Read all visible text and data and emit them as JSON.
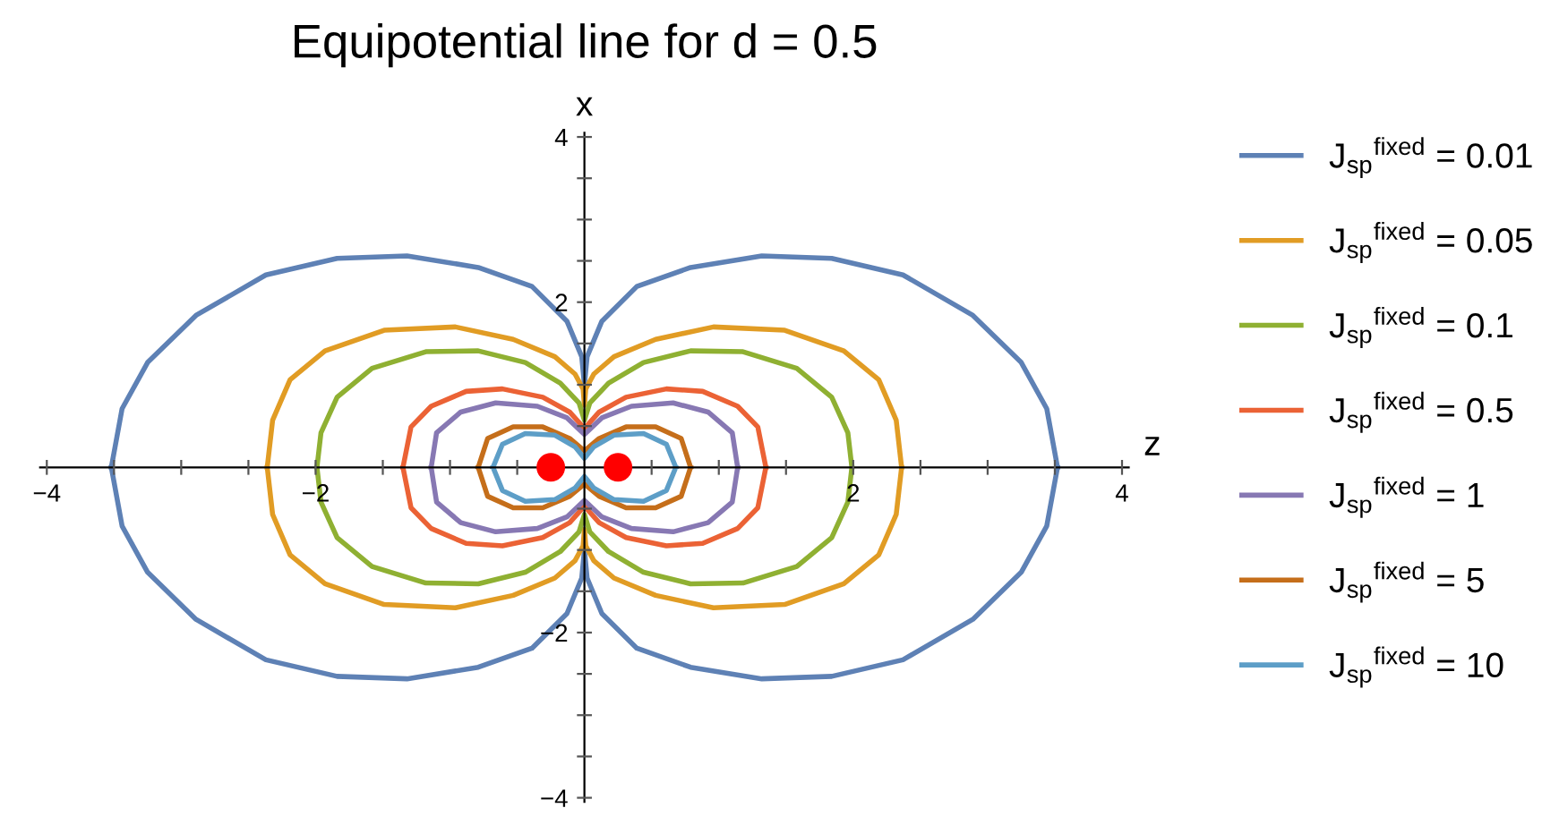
{
  "chart_data": {
    "type": "line",
    "title": "Equipotential line for d = 0.5",
    "xlabel": "z",
    "ylabel": "x",
    "xlim": [
      -4.05,
      4.05
    ],
    "ylim": [
      -4.05,
      4.05
    ],
    "xticks": [
      {
        "value": -4,
        "label": "−4"
      },
      {
        "value": -3.5,
        "label": null
      },
      {
        "value": -3,
        "label": null
      },
      {
        "value": -2.5,
        "label": null
      },
      {
        "value": -2,
        "label": "−2"
      },
      {
        "value": -1.5,
        "label": null
      },
      {
        "value": -1,
        "label": null
      },
      {
        "value": -0.5,
        "label": null
      },
      {
        "value": 0.5,
        "label": null
      },
      {
        "value": 1,
        "label": null
      },
      {
        "value": 1.5,
        "label": null
      },
      2,
      {
        "value": 2.5,
        "label": null
      },
      {
        "value": 3,
        "label": null
      },
      {
        "value": 3.5,
        "label": null
      },
      4
    ],
    "yticks": [
      {
        "value": -4,
        "label": "−4"
      },
      {
        "value": -3.5,
        "label": null
      },
      {
        "value": -3,
        "label": null
      },
      {
        "value": -2.5,
        "label": null
      },
      {
        "value": -2,
        "label": "−2"
      },
      {
        "value": -1.5,
        "label": null
      },
      {
        "value": -1,
        "label": null
      },
      {
        "value": -0.5,
        "label": null
      },
      {
        "value": 0.5,
        "label": null
      },
      {
        "value": 1,
        "label": null
      },
      {
        "value": 1.5,
        "label": null
      },
      2,
      {
        "value": 2.5,
        "label": null
      },
      {
        "value": 3,
        "label": null
      },
      {
        "value": 3.5,
        "label": null
      },
      4
    ],
    "grid": false,
    "legend": "right",
    "line_style": "solid",
    "series": [
      {
        "name": "J$_{sp}$$^{fixed}$ = 0.01",
        "color": "#5e81b5",
        "x": [
          -3.52,
          -3.44,
          -3.25,
          -2.89,
          -2.37,
          -1.84,
          -1.32,
          -0.79,
          -0.39,
          -0.13,
          -0.02,
          0,
          0.02,
          0.13,
          0.39,
          0.79,
          1.32,
          1.84,
          2.37,
          2.89,
          3.25,
          3.44,
          3.52,
          null,
          -3.52,
          -3.44,
          -3.25,
          -2.89,
          -2.37,
          -1.84,
          -1.32,
          -0.79,
          -0.39,
          -0.13,
          -0.02,
          0,
          0.02,
          0.13,
          0.39,
          0.79,
          1.32,
          1.84,
          2.37,
          2.89,
          3.25,
          3.44,
          3.52
        ],
        "values": [
          0,
          0.71,
          1.27,
          1.84,
          2.33,
          2.53,
          2.56,
          2.42,
          2.19,
          1.77,
          1.34,
          1.0,
          1.34,
          1.77,
          2.19,
          2.42,
          2.56,
          2.53,
          2.33,
          1.84,
          1.27,
          0.71,
          0,
          null,
          0,
          -0.71,
          -1.27,
          -1.84,
          -2.33,
          -2.53,
          -2.56,
          -2.42,
          -2.19,
          -1.77,
          -1.34,
          -1.0,
          -1.34,
          -1.77,
          -2.19,
          -2.42,
          -2.56,
          -2.53,
          -2.33,
          -1.84,
          -1.27,
          -0.71,
          0
        ]
      },
      {
        "name": "J$_{sp}$$^{fixed}$ = 0.05",
        "color": "#e19c24",
        "x": [
          -2.36,
          -2.32,
          -2.19,
          -1.93,
          -1.49,
          -0.96,
          -0.53,
          -0.22,
          -0.07,
          -0.01,
          0,
          0.01,
          0.07,
          0.22,
          0.53,
          0.96,
          1.49,
          1.93,
          2.19,
          2.32,
          2.36,
          null,
          -2.36,
          -2.32,
          -2.19,
          -1.93,
          -1.49,
          -0.96,
          -0.53,
          -0.22,
          -0.07,
          -0.01,
          0,
          0.01,
          0.07,
          0.22,
          0.53,
          0.96,
          1.49,
          1.93,
          2.19,
          2.32,
          2.36
        ],
        "values": [
          0,
          0.57,
          1.06,
          1.41,
          1.66,
          1.7,
          1.55,
          1.34,
          1.13,
          0.95,
          0.75,
          0.95,
          1.13,
          1.34,
          1.55,
          1.7,
          1.66,
          1.41,
          1.06,
          0.57,
          0,
          null,
          0,
          -0.57,
          -1.06,
          -1.41,
          -1.66,
          -1.7,
          -1.55,
          -1.34,
          -1.13,
          -0.95,
          -0.75,
          -0.95,
          -1.13,
          -1.34,
          -1.55,
          -1.7,
          -1.66,
          -1.41,
          -1.06,
          -0.57,
          0
        ]
      },
      {
        "name": "J$_{sp}$$^{fixed}$ = 0.1",
        "color": "#8fb032",
        "x": [
          -1.99,
          -1.96,
          -1.84,
          -1.58,
          -1.18,
          -0.79,
          -0.44,
          -0.18,
          -0.04,
          0,
          0.04,
          0.18,
          0.44,
          0.79,
          1.18,
          1.58,
          1.84,
          1.96,
          1.99,
          null,
          -1.99,
          -1.96,
          -1.84,
          -1.58,
          -1.18,
          -0.79,
          -0.44,
          -0.18,
          -0.04,
          0,
          0.04,
          0.18,
          0.44,
          0.79,
          1.18,
          1.58,
          1.84,
          1.96,
          1.99
        ],
        "values": [
          0,
          0.42,
          0.85,
          1.2,
          1.4,
          1.41,
          1.27,
          1.02,
          0.78,
          0.57,
          0.78,
          1.02,
          1.27,
          1.41,
          1.4,
          1.2,
          0.85,
          0.42,
          0,
          null,
          0,
          -0.42,
          -0.85,
          -1.2,
          -1.4,
          -1.41,
          -1.27,
          -1.02,
          -0.78,
          -0.57,
          -0.78,
          -1.02,
          -1.27,
          -1.41,
          -1.4,
          -1.2,
          -0.85,
          -0.42,
          0
        ]
      },
      {
        "name": "J$_{sp}$$^{fixed}$ = 0.5",
        "color": "#eb6235",
        "x": [
          -1.35,
          -1.29,
          -1.14,
          -0.88,
          -0.61,
          -0.31,
          -0.11,
          0,
          0.11,
          0.31,
          0.61,
          0.88,
          1.14,
          1.29,
          1.35,
          null,
          -1.35,
          -1.29,
          -1.14,
          -0.88,
          -0.61,
          -0.31,
          -0.11,
          0,
          0.11,
          0.31,
          0.61,
          0.88,
          1.14,
          1.29,
          1.35
        ],
        "values": [
          0,
          0.49,
          0.74,
          0.92,
          0.95,
          0.85,
          0.67,
          0.47,
          0.67,
          0.85,
          0.95,
          0.92,
          0.74,
          0.49,
          0,
          null,
          0,
          -0.49,
          -0.74,
          -0.92,
          -0.95,
          -0.85,
          -0.67,
          -0.47,
          -0.67,
          -0.85,
          -0.95,
          -0.92,
          -0.74,
          -0.49,
          0
        ]
      },
      {
        "name": "J$_{sp}$$^{fixed}$ = 1",
        "color": "#8778b3",
        "x": [
          -1.14,
          -1.1,
          -0.92,
          -0.66,
          -0.35,
          -0.13,
          0,
          0.13,
          0.35,
          0.66,
          0.92,
          1.1,
          1.14,
          null,
          -1.14,
          -1.1,
          -0.92,
          -0.66,
          -0.35,
          -0.13,
          0,
          0.13,
          0.35,
          0.66,
          0.92,
          1.1,
          1.14
        ],
        "values": [
          0,
          0.42,
          0.67,
          0.78,
          0.74,
          0.6,
          0.4,
          0.6,
          0.74,
          0.78,
          0.67,
          0.42,
          0,
          null,
          0,
          -0.42,
          -0.67,
          -0.78,
          -0.74,
          -0.6,
          -0.4,
          -0.6,
          -0.74,
          -0.78,
          -0.67,
          -0.42,
          0
        ]
      },
      {
        "name": "J$_{sp}$$^{fixed}$ = 5",
        "color": "#c56e1a",
        "x": [
          -0.79,
          -0.72,
          -0.53,
          -0.31,
          -0.11,
          0,
          0.11,
          0.31,
          0.53,
          0.72,
          0.79,
          null,
          -0.79,
          -0.72,
          -0.53,
          -0.31,
          -0.11,
          0,
          0.11,
          0.31,
          0.53,
          0.72,
          0.79
        ],
        "values": [
          0,
          0.35,
          0.49,
          0.49,
          0.35,
          0.2,
          0.35,
          0.49,
          0.49,
          0.35,
          0,
          null,
          0,
          -0.35,
          -0.49,
          -0.49,
          -0.35,
          -0.2,
          -0.35,
          -0.49,
          -0.49,
          -0.35,
          0
        ]
      },
      {
        "name": "J$_{sp}$$^{fixed}$ = 10",
        "color": "#5d9ec7",
        "x": [
          -0.68,
          -0.61,
          -0.44,
          -0.22,
          -0.07,
          0,
          0.07,
          0.22,
          0.44,
          0.61,
          0.68,
          null,
          -0.68,
          -0.61,
          -0.44,
          -0.22,
          -0.07,
          0,
          0.07,
          0.22,
          0.44,
          0.61,
          0.68
        ],
        "values": [
          0,
          0.28,
          0.41,
          0.39,
          0.25,
          0.11,
          0.25,
          0.39,
          0.41,
          0.28,
          0,
          null,
          0,
          -0.28,
          -0.41,
          -0.39,
          -0.25,
          -0.11,
          -0.25,
          -0.39,
          -0.41,
          -0.28,
          0
        ]
      },
      {
        "type": "scatter",
        "color": "#ff0000",
        "marker": "circle",
        "x": [
          -0.25,
          0.25
        ],
        "values": [
          0,
          0
        ]
      }
    ]
  }
}
